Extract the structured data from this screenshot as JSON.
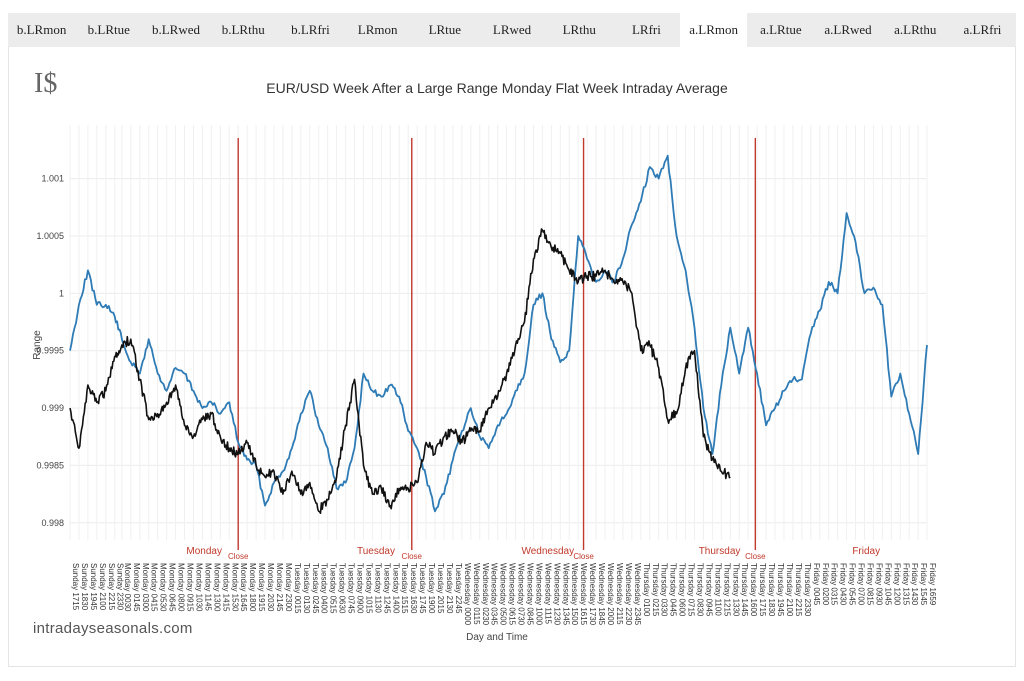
{
  "tabs": [
    {
      "label": "b.LRmon",
      "active": false
    },
    {
      "label": "b.LRtue",
      "active": false
    },
    {
      "label": "b.LRwed",
      "active": false
    },
    {
      "label": "b.LRthu",
      "active": false
    },
    {
      "label": "b.LRfri",
      "active": false
    },
    {
      "label": "LRmon",
      "active": false
    },
    {
      "label": "LRtue",
      "active": false
    },
    {
      "label": "LRwed",
      "active": false
    },
    {
      "label": "LRthu",
      "active": false
    },
    {
      "label": "LRfri",
      "active": false
    },
    {
      "label": "a.LRmon",
      "active": true
    },
    {
      "label": "a.LRtue",
      "active": false
    },
    {
      "label": "a.LRwed",
      "active": false
    },
    {
      "label": "a.LRthu",
      "active": false
    },
    {
      "label": "a.LRfri",
      "active": false
    }
  ],
  "logo": "I$",
  "footer": {
    "site": "intradayseasonals.com"
  },
  "chart_data": {
    "type": "line",
    "title": "EUR/USD Week After a Large Range Monday Flat Week Intraday Average",
    "xlabel": "Day and Time",
    "ylabel": "Range",
    "ylim": [
      0.99785,
      1.00138
    ],
    "yticks": [
      0.998,
      0.9985,
      0.999,
      0.9995,
      1,
      1.0005,
      1.001
    ],
    "ytick_labels": [
      "0.998",
      "0.9985",
      "0.999",
      "0.9995",
      "1",
      "1.0005",
      "1.001"
    ],
    "grid": true,
    "x_tick_labels": [
      "Sunday 1715",
      "Sunday 1830",
      "Sunday 1945",
      "Sunday 2100",
      "Sunday 2215",
      "Sunday 2330",
      "Monday 0030",
      "Monday 0145",
      "Monday 0300",
      "Monday 0415",
      "Monday 0530",
      "Monday 0645",
      "Monday 0800",
      "Monday 0915",
      "Monday 1030",
      "Monday 1145",
      "Monday 1300",
      "Monday 1415",
      "Monday 1530",
      "Monday 1645",
      "Monday 1800",
      "Monday 1915",
      "Monday 2030",
      "Monday 2145",
      "Monday 2300",
      "Tuesday 0015",
      "Tuesday 0130",
      "Tuesday 0245",
      "Tuesday 0400",
      "Tuesday 0515",
      "Tuesday 0630",
      "Tuesday 0745",
      "Tuesday 0900",
      "Tuesday 1015",
      "Tuesday 1130",
      "Tuesday 1245",
      "Tuesday 1400",
      "Tuesday 1515",
      "Tuesday 1630",
      "Tuesday 1745",
      "Tuesday 1900",
      "Tuesday 2015",
      "Tuesday 2130",
      "Tuesday 2245",
      "Wednesday 0000",
      "Wednesday 0115",
      "Wednesday 0230",
      "Wednesday 0345",
      "Wednesday 0500",
      "Wednesday 0615",
      "Wednesday 0730",
      "Wednesday 0845",
      "Wednesday 1000",
      "Wednesday 1115",
      "Wednesday 1230",
      "Wednesday 1345",
      "Wednesday 1500",
      "Wednesday 1615",
      "Wednesday 1730",
      "Wednesday 1845",
      "Wednesday 2000",
      "Wednesday 2115",
      "Wednesday 2230",
      "Wednesday 2345",
      "Thursday 0100",
      "Thursday 0215",
      "Thursday 0330",
      "Thursday 0445",
      "Thursday 0600",
      "Thursday 0715",
      "Thursday 0830",
      "Thursday 0945",
      "Thursday 1100",
      "Thursday 1215",
      "Thursday 1330",
      "Thursday 1445",
      "Thursday 1600",
      "Thursday 1715",
      "Thursday 1830",
      "Thursday 1945",
      "Thursday 2100",
      "Thursday 2215",
      "Thursday 2330",
      "Friday 0045",
      "Friday 0200",
      "Friday 0315",
      "Friday 0430",
      "Friday 0545",
      "Friday 0700",
      "Friday 0815",
      "Friday 0930",
      "Friday 1045",
      "Friday 1200",
      "Friday 1315",
      "Friday 1430",
      "Friday 1545",
      "Friday 1659"
    ],
    "day_labels": [
      "Monday",
      "Tuesday",
      "Wednesday",
      "Thursday",
      "Friday"
    ],
    "close_label": "Close",
    "close_markers": [
      "Monday 1645",
      "Tuesday 1700",
      "Wednesday 1700",
      "Thursday 1700"
    ],
    "series": [
      {
        "color": "#2e7bb6",
        "points": [
          [
            "Sunday 1715",
            0.9995
          ],
          [
            "Sunday 1830",
            0.9999
          ],
          [
            "Sunday 1945",
            1.0002
          ],
          [
            "Sunday 2100",
            0.9999
          ],
          [
            "Sunday 2215",
            0.9999
          ],
          [
            "Sunday 2330",
            0.9998
          ],
          [
            "Monday 0030",
            0.9996
          ],
          [
            "Monday 0145",
            0.9994
          ],
          [
            "Monday 0300",
            0.9993
          ],
          [
            "Monday 0415",
            0.9996
          ],
          [
            "Monday 0530",
            0.9993
          ],
          [
            "Monday 0645",
            0.99915
          ],
          [
            "Monday 0800",
            0.99935
          ],
          [
            "Monday 0915",
            0.9993
          ],
          [
            "Monday 1030",
            0.99915
          ],
          [
            "Monday 1145",
            0.999
          ],
          [
            "Monday 1300",
            0.99905
          ],
          [
            "Monday 1415",
            0.99895
          ],
          [
            "Monday 1530",
            0.99905
          ],
          [
            "Monday 1645",
            0.9987
          ],
          [
            "Monday 1800",
            0.99855
          ],
          [
            "Monday 1915",
            0.9985
          ],
          [
            "Monday 2030",
            0.99815
          ],
          [
            "Monday 2145",
            0.99835
          ],
          [
            "Monday 2300",
            0.99845
          ],
          [
            "Tuesday 0015",
            0.99865
          ],
          [
            "Tuesday 0130",
            0.99895
          ],
          [
            "Tuesday 0245",
            0.99915
          ],
          [
            "Tuesday 0400",
            0.99885
          ],
          [
            "Tuesday 0515",
            0.99865
          ],
          [
            "Tuesday 0630",
            0.9983
          ],
          [
            "Tuesday 0745",
            0.99835
          ],
          [
            "Tuesday 0900",
            0.99865
          ],
          [
            "Tuesday 1015",
            0.9993
          ],
          [
            "Tuesday 1130",
            0.99915
          ],
          [
            "Tuesday 1245",
            0.9991
          ],
          [
            "Tuesday 1400",
            0.9992
          ],
          [
            "Tuesday 1515",
            0.9991
          ],
          [
            "Tuesday 1630",
            0.9988
          ],
          [
            "Tuesday 1745",
            0.99865
          ],
          [
            "Tuesday 1900",
            0.9984
          ],
          [
            "Tuesday 2015",
            0.9981
          ],
          [
            "Tuesday 2130",
            0.99825
          ],
          [
            "Tuesday 2245",
            0.99855
          ],
          [
            "Wednesday 0000",
            0.9988
          ],
          [
            "Wednesday 0115",
            0.999
          ],
          [
            "Wednesday 0230",
            0.99875
          ],
          [
            "Wednesday 0345",
            0.99865
          ],
          [
            "Wednesday 0500",
            0.99885
          ],
          [
            "Wednesday 0615",
            0.99895
          ],
          [
            "Wednesday 0730",
            0.99915
          ],
          [
            "Wednesday 0845",
            0.9993
          ],
          [
            "Wednesday 1000",
            0.9999
          ],
          [
            "Wednesday 1115",
            1.0
          ],
          [
            "Wednesday 1230",
            0.9996
          ],
          [
            "Wednesday 1345",
            0.9994
          ],
          [
            "Wednesday 1500",
            0.9995
          ],
          [
            "Wednesday 1615",
            1.0005
          ],
          [
            "Wednesday 1730",
            1.0003
          ],
          [
            "Wednesday 1845",
            1.0001
          ],
          [
            "Wednesday 2000",
            1.0002
          ],
          [
            "Wednesday 2115",
            1.0001
          ],
          [
            "Wednesday 2230",
            1.0003
          ],
          [
            "Wednesday 2345",
            1.0006
          ],
          [
            "Thursday 0100",
            1.0008
          ],
          [
            "Thursday 0215",
            1.0011
          ],
          [
            "Thursday 0330",
            1.001
          ],
          [
            "Thursday 0445",
            1.0012
          ],
          [
            "Thursday 0600",
            1.0005
          ],
          [
            "Thursday 0715",
            1.0002
          ],
          [
            "Thursday 0830",
            0.9997
          ],
          [
            "Thursday 0945",
            0.999
          ],
          [
            "Thursday 1100",
            0.9986
          ],
          [
            "Thursday 1215",
            0.9992
          ],
          [
            "Thursday 1330",
            0.9997
          ],
          [
            "Thursday 1445",
            0.9993
          ],
          [
            "Thursday 1600",
            0.9997
          ],
          [
            "Thursday 1715",
            0.9993
          ],
          [
            "Thursday 1830",
            0.99885
          ],
          [
            "Thursday 1945",
            0.999
          ],
          [
            "Thursday 2100",
            0.99915
          ],
          [
            "Thursday 2215",
            0.99925
          ],
          [
            "Thursday 2330",
            0.99925
          ],
          [
            "Friday 0045",
            0.99965
          ],
          [
            "Friday 0200",
            0.99985
          ],
          [
            "Friday 0315",
            1.0001
          ],
          [
            "Friday 0430",
            1.0
          ],
          [
            "Friday 0545",
            1.0007
          ],
          [
            "Friday 0700",
            1.00045
          ],
          [
            "Friday 0815",
            1.0
          ],
          [
            "Friday 0930",
            1.00005
          ],
          [
            "Friday 1045",
            0.9999
          ],
          [
            "Friday 1200",
            0.9991
          ],
          [
            "Friday 1315",
            0.9993
          ],
          [
            "Friday 1430",
            0.99895
          ],
          [
            "Friday 1545",
            0.9986
          ],
          [
            "Friday 1659",
            0.99955
          ]
        ]
      },
      {
        "color": "#111111",
        "points": [
          [
            "Sunday 1715",
            0.999
          ],
          [
            "Sunday 1830",
            0.99865
          ],
          [
            "Sunday 1945",
            0.9992
          ],
          [
            "Sunday 2100",
            0.99905
          ],
          [
            "Sunday 2215",
            0.99915
          ],
          [
            "Sunday 2330",
            0.99945
          ],
          [
            "Monday 0030",
            0.99955
          ],
          [
            "Monday 0145",
            0.9996
          ],
          [
            "Monday 0300",
            0.99925
          ],
          [
            "Monday 0415",
            0.9989
          ],
          [
            "Monday 0530",
            0.99895
          ],
          [
            "Monday 0645",
            0.99905
          ],
          [
            "Monday 0800",
            0.9992
          ],
          [
            "Monday 0915",
            0.99885
          ],
          [
            "Monday 1030",
            0.99875
          ],
          [
            "Monday 1145",
            0.9989
          ],
          [
            "Monday 1300",
            0.99895
          ],
          [
            "Monday 1415",
            0.99875
          ],
          [
            "Monday 1530",
            0.99865
          ],
          [
            "Monday 1645",
            0.9986
          ],
          [
            "Monday 1800",
            0.9987
          ],
          [
            "Monday 1915",
            0.9985
          ],
          [
            "Monday 2030",
            0.9984
          ],
          [
            "Monday 2145",
            0.99845
          ],
          [
            "Monday 2300",
            0.99825
          ],
          [
            "Tuesday 0015",
            0.99845
          ],
          [
            "Tuesday 0130",
            0.99825
          ],
          [
            "Tuesday 0245",
            0.99835
          ],
          [
            "Tuesday 0400",
            0.9981
          ],
          [
            "Tuesday 0515",
            0.9982
          ],
          [
            "Tuesday 0630",
            0.9984
          ],
          [
            "Tuesday 0745",
            0.99885
          ],
          [
            "Tuesday 0900",
            0.99925
          ],
          [
            "Tuesday 1015",
            0.9985
          ],
          [
            "Tuesday 1130",
            0.99825
          ],
          [
            "Tuesday 1245",
            0.9983
          ],
          [
            "Tuesday 1400",
            0.99815
          ],
          [
            "Tuesday 1515",
            0.9983
          ],
          [
            "Tuesday 1630",
            0.9983
          ],
          [
            "Tuesday 1745",
            0.99835
          ],
          [
            "Tuesday 1900",
            0.9987
          ],
          [
            "Tuesday 2015",
            0.9986
          ],
          [
            "Tuesday 2130",
            0.99875
          ],
          [
            "Tuesday 2245",
            0.9988
          ],
          [
            "Wednesday 0000",
            0.9987
          ],
          [
            "Wednesday 0115",
            0.9988
          ],
          [
            "Wednesday 0230",
            0.9988
          ],
          [
            "Wednesday 0345",
            0.999
          ],
          [
            "Wednesday 0500",
            0.9991
          ],
          [
            "Wednesday 0615",
            0.9993
          ],
          [
            "Wednesday 0730",
            0.99955
          ],
          [
            "Wednesday 0845",
            0.99975
          ],
          [
            "Wednesday 1000",
            1.0003
          ],
          [
            "Wednesday 1115",
            1.00055
          ],
          [
            "Wednesday 1230",
            1.0004
          ],
          [
            "Wednesday 1345",
            1.00035
          ],
          [
            "Wednesday 1500",
            1.0002
          ],
          [
            "Wednesday 1615",
            1.0001
          ],
          [
            "Wednesday 1730",
            1.00015
          ],
          [
            "Wednesday 1845",
            1.00015
          ],
          [
            "Wednesday 2000",
            1.0002
          ],
          [
            "Wednesday 2115",
            1.0001
          ],
          [
            "Wednesday 2230",
            1.0001
          ],
          [
            "Wednesday 2345",
            1.0
          ],
          [
            "Thursday 0100",
            0.9995
          ],
          [
            "Thursday 0215",
            0.99955
          ],
          [
            "Thursday 0330",
            0.99935
          ],
          [
            "Thursday 0445",
            0.9989
          ],
          [
            "Thursday 0600",
            0.99895
          ],
          [
            "Thursday 0715",
            0.99935
          ],
          [
            "Thursday 0830",
            0.9995
          ],
          [
            "Thursday 0945",
            0.99875
          ],
          [
            "Thursday 1100",
            0.99855
          ],
          [
            "Thursday 1215",
            0.99845
          ],
          [
            "Thursday 1330",
            0.9984
          ]
        ]
      }
    ]
  }
}
